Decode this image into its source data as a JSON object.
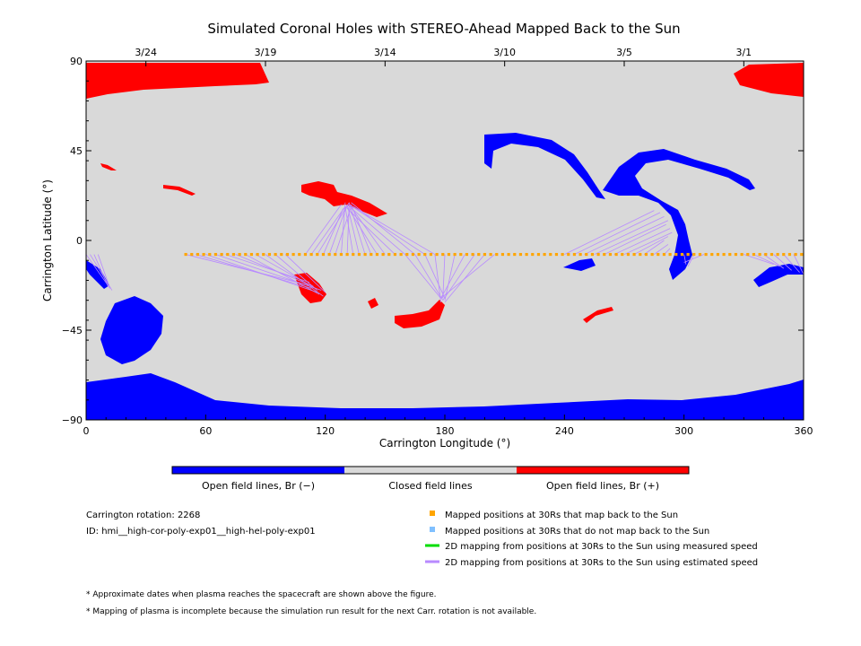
{
  "chart_data": {
    "type": "scatter",
    "title": "Simulated Coronal Holes with STEREO-Ahead Mapped Back to the Sun",
    "xlabel": "Carrington Longitude (°)",
    "ylabel": "Carrington Latitude (°)",
    "xlim": [
      0,
      360
    ],
    "ylim": [
      -90,
      90
    ],
    "x_ticks": [
      0,
      60,
      120,
      180,
      240,
      300,
      360
    ],
    "y_ticks": [
      90,
      45,
      0,
      -45,
      -90
    ],
    "y_tick_labels": [
      "90",
      "45",
      "0",
      "−45",
      "−90"
    ],
    "top_axis_dates": [
      {
        "label": "3/24",
        "lon": 30
      },
      {
        "label": "3/19",
        "lon": 90
      },
      {
        "label": "3/14",
        "lon": 150
      },
      {
        "label": "3/10",
        "lon": 210
      },
      {
        "label": "3/5",
        "lon": 270
      },
      {
        "label": "3/1",
        "lon": 330
      }
    ],
    "colors": {
      "open_negative": "#0000ff",
      "closed": "#d9d9d9",
      "open_positive": "#ff0000",
      "mapped_back": "#ffa500",
      "not_mapped": "#80c0ff",
      "measured_speed": "#00dd00",
      "estimated_speed": "#b88aff"
    },
    "mapped_positions": {
      "lat": -7,
      "lon_start": 50,
      "lon_end": 360,
      "lon_step": 3
    },
    "mapping_lines": [
      {
        "from_lon": 50,
        "to_lon": 110,
        "to_lat": -22
      },
      {
        "from_lon": 55,
        "to_lon": 113,
        "to_lat": -24
      },
      {
        "from_lon": 60,
        "to_lon": 116,
        "to_lat": -26
      },
      {
        "from_lon": 65,
        "to_lon": 118,
        "to_lat": -25
      },
      {
        "from_lon": 70,
        "to_lon": 112,
        "to_lat": -21
      },
      {
        "from_lon": 75,
        "to_lon": 114,
        "to_lat": -23
      },
      {
        "from_lon": 80,
        "to_lon": 117,
        "to_lat": -27
      },
      {
        "from_lon": 85,
        "to_lon": 115,
        "to_lat": -24
      },
      {
        "from_lon": 90,
        "to_lon": 119,
        "to_lat": -28
      },
      {
        "from_lon": 95,
        "to_lon": 116,
        "to_lat": -25
      },
      {
        "from_lon": 100,
        "to_lon": 120,
        "to_lat": -26
      },
      {
        "from_lon": 110,
        "to_lon": 128,
        "to_lat": 18
      },
      {
        "from_lon": 113,
        "to_lon": 130,
        "to_lat": 17
      },
      {
        "from_lon": 116,
        "to_lon": 132,
        "to_lat": 19
      },
      {
        "from_lon": 119,
        "to_lon": 129,
        "to_lat": 16
      },
      {
        "from_lon": 122,
        "to_lon": 131,
        "to_lat": 18
      },
      {
        "from_lon": 125,
        "to_lon": 133,
        "to_lat": 17
      },
      {
        "from_lon": 128,
        "to_lon": 130,
        "to_lat": 19
      },
      {
        "from_lon": 131,
        "to_lon": 132,
        "to_lat": 18
      },
      {
        "from_lon": 134,
        "to_lon": 130,
        "to_lat": 17
      },
      {
        "from_lon": 137,
        "to_lon": 131,
        "to_lat": 18
      },
      {
        "from_lon": 140,
        "to_lon": 132,
        "to_lat": 19
      },
      {
        "from_lon": 143,
        "to_lon": 133,
        "to_lat": 18
      },
      {
        "from_lon": 146,
        "to_lon": 131,
        "to_lat": 17
      },
      {
        "from_lon": 150,
        "to_lon": 132,
        "to_lat": 18
      },
      {
        "from_lon": 155,
        "to_lon": 130,
        "to_lat": 17
      },
      {
        "from_lon": 160,
        "to_lon": 131,
        "to_lat": 18
      },
      {
        "from_lon": 165,
        "to_lon": 133,
        "to_lat": 19
      },
      {
        "from_lon": 170,
        "to_lon": 132,
        "to_lat": 18
      },
      {
        "from_lon": 175,
        "to_lon": 134,
        "to_lat": 17
      },
      {
        "from_lon": 160,
        "to_lon": 178,
        "to_lat": -29
      },
      {
        "from_lon": 165,
        "to_lon": 179,
        "to_lat": -30
      },
      {
        "from_lon": 170,
        "to_lon": 180,
        "to_lat": -29
      },
      {
        "from_lon": 175,
        "to_lon": 178,
        "to_lat": -31
      },
      {
        "from_lon": 180,
        "to_lon": 179,
        "to_lat": -29
      },
      {
        "from_lon": 185,
        "to_lon": 180,
        "to_lat": -30
      },
      {
        "from_lon": 190,
        "to_lon": 178,
        "to_lat": -29
      },
      {
        "from_lon": 195,
        "to_lon": 179,
        "to_lat": -30
      },
      {
        "from_lon": 200,
        "to_lon": 180,
        "to_lat": -31
      },
      {
        "from_lon": 205,
        "to_lon": 178,
        "to_lat": -29
      },
      {
        "from_lon": 240,
        "to_lon": 285,
        "to_lat": 15
      },
      {
        "from_lon": 245,
        "to_lon": 288,
        "to_lat": 14
      },
      {
        "from_lon": 250,
        "to_lon": 290,
        "to_lat": 12
      },
      {
        "from_lon": 255,
        "to_lon": 292,
        "to_lat": 10
      },
      {
        "from_lon": 260,
        "to_lon": 291,
        "to_lat": 8
      },
      {
        "from_lon": 265,
        "to_lon": 293,
        "to_lat": 6
      },
      {
        "from_lon": 270,
        "to_lon": 294,
        "to_lat": 4
      },
      {
        "from_lon": 275,
        "to_lon": 292,
        "to_lat": 2
      },
      {
        "from_lon": 280,
        "to_lon": 290,
        "to_lat": 0
      },
      {
        "from_lon": 285,
        "to_lon": 292,
        "to_lat": -2
      },
      {
        "from_lon": 290,
        "to_lon": 293,
        "to_lat": -4
      },
      {
        "from_lon": 300,
        "to_lon": 301,
        "to_lat": -12
      },
      {
        "from_lon": 305,
        "to_lon": 302,
        "to_lat": -13
      },
      {
        "from_lon": 310,
        "to_lon": 300,
        "to_lat": -11
      },
      {
        "from_lon": 330,
        "to_lon": 345,
        "to_lat": -12
      },
      {
        "from_lon": 335,
        "to_lon": 348,
        "to_lat": -13
      },
      {
        "from_lon": 340,
        "to_lon": 350,
        "to_lat": -14
      },
      {
        "from_lon": 345,
        "to_lon": 354,
        "to_lat": -15
      },
      {
        "from_lon": 350,
        "to_lon": 358,
        "to_lat": -16
      },
      {
        "from_lon": 355,
        "to_lon": 360,
        "to_lat": -17
      },
      {
        "from_lon": 0,
        "to_lon": 12,
        "to_lat": -24
      },
      {
        "from_lon": 2,
        "to_lon": 13,
        "to_lat": -25
      },
      {
        "from_lon": 4,
        "to_lon": 11,
        "to_lat": -23
      },
      {
        "from_lon": 6,
        "to_lon": 12,
        "to_lat": -24
      }
    ]
  },
  "colorbar": {
    "labels": [
      "Open field lines, Br (−)",
      "Closed field lines",
      "Open field lines, Br (+)"
    ]
  },
  "info": {
    "carrington_rotation": "Carrington rotation: 2268",
    "run_id": "ID: hmi__high-cor-poly-exp01__high-hel-poly-exp01"
  },
  "legend": {
    "items": [
      "Mapped positions at 30Rs that map back to the Sun",
      "Mapped positions at 30Rs that do not map back to the Sun",
      "2D mapping from positions at 30Rs to the Sun using measured speed",
      "2D mapping from positions at 30Rs to the Sun using estimated speed"
    ]
  },
  "footnotes": [
    "* Approximate dates when plasma reaches the spacecraft are shown above the figure.",
    "* Mapping of plasma is incomplete because the simulation run result for the next Carr. rotation is not available."
  ]
}
